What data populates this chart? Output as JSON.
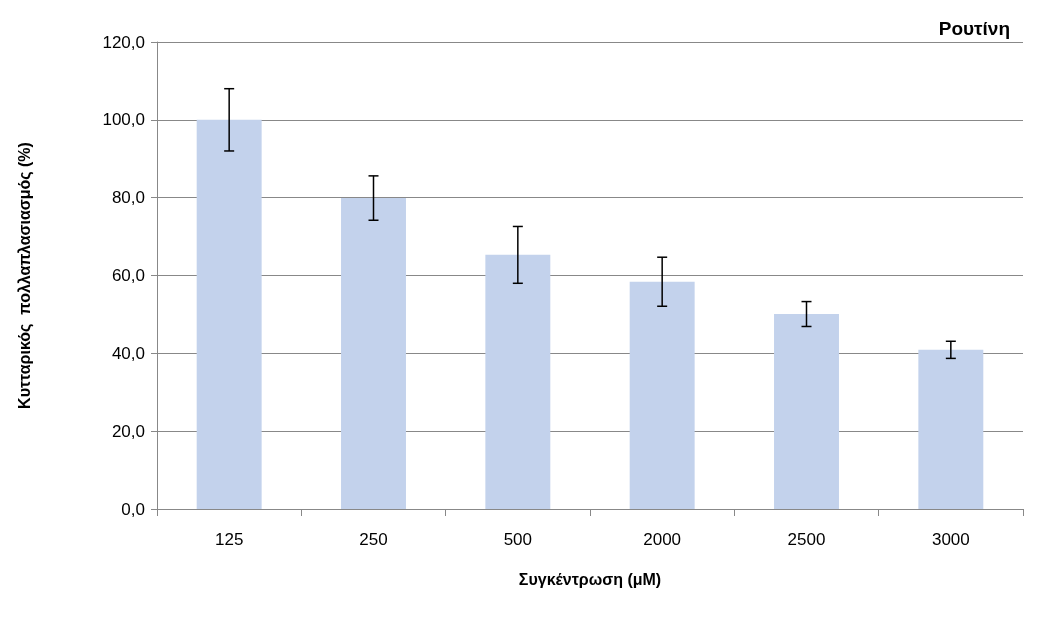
{
  "chart_data": {
    "type": "bar",
    "title": "Ρουτίνη",
    "xlabel": "Συγκέντρωση (μM)",
    "ylabel": "Κυτταρικός  πολλαπλασιασμός (%)",
    "categories": [
      "125",
      "250",
      "500",
      "2000",
      "2500",
      "3000"
    ],
    "values": [
      100.0,
      79.9,
      65.3,
      58.4,
      50.1,
      40.9
    ],
    "errors": [
      8.0,
      5.7,
      7.3,
      6.3,
      3.2,
      2.2
    ],
    "color": "#c3d2ec",
    "ylim": [
      0,
      120
    ],
    "yticks": [
      {
        "value": 0,
        "label": "0,0"
      },
      {
        "value": 20,
        "label": "20,0"
      },
      {
        "value": 40,
        "label": "40,0"
      },
      {
        "value": 60,
        "label": "60,0"
      },
      {
        "value": 80,
        "label": "80,0"
      },
      {
        "value": 100,
        "label": "100,0"
      },
      {
        "value": 120,
        "label": "120,0"
      }
    ],
    "grid": "y"
  }
}
